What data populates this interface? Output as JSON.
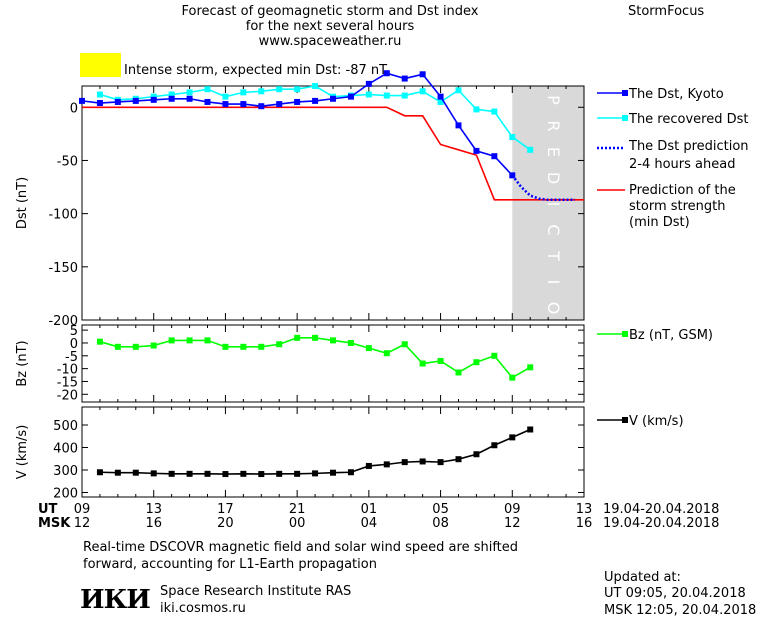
{
  "header": {
    "title_line1": "Forecast of geomagnetic storm and Dst index",
    "title_line2": "for the next several hours",
    "title_line3": "www.spaceweather.ru",
    "brand": "StormFocus"
  },
  "storm": {
    "label": "Intense storm, expected min Dst: -87 nT",
    "color": "#ffff00"
  },
  "prediction_label": "PREDICTION",
  "legend": {
    "dst_kyoto": "The Dst, Kyoto",
    "dst_recovered": "The recovered Dst",
    "dst_prediction_line1": "The Dst prediction",
    "dst_prediction_line2": "2-4 hours ahead",
    "storm_strength_line1": "Prediction of the",
    "storm_strength_line2": "storm strength",
    "storm_strength_line3": "(min Dst)",
    "bz": "Bz (nT, GSM)",
    "v": "V (km/s)"
  },
  "time_axis": {
    "ut_label": "UT",
    "msk_label": "MSK",
    "ut_ticks": [
      "09",
      "13",
      "17",
      "21",
      "01",
      "05",
      "09",
      "13"
    ],
    "msk_ticks": [
      "12",
      "16",
      "20",
      "00",
      "04",
      "08",
      "12",
      "16"
    ],
    "date_range": "19.04-20.04.2018",
    "x_range": [
      0,
      28
    ],
    "prediction_x_range": [
      24,
      28
    ]
  },
  "chart_data": [
    {
      "type": "line",
      "ylabel": "Dst (nT)",
      "ylim": [
        -200,
        20
      ],
      "yticks": [
        "0",
        "-50",
        "-100",
        "-150",
        "-200"
      ],
      "ytick_values": [
        0,
        -50,
        -100,
        -150,
        -200
      ],
      "series": [
        {
          "name": "The Dst, Kyoto",
          "color": "#0000ff",
          "x": [
            0,
            1,
            2,
            3,
            4,
            5,
            6,
            7,
            8,
            9,
            10,
            11,
            12,
            13,
            14,
            15,
            16,
            17,
            18,
            19,
            20,
            21,
            22,
            23,
            24
          ],
          "values": [
            6,
            4,
            5,
            6,
            7,
            8,
            8,
            5,
            3,
            3,
            1,
            3,
            5,
            6,
            8,
            10,
            22,
            32,
            27,
            31,
            10,
            -17,
            -41,
            -46,
            -64
          ]
        },
        {
          "name": "The recovered Dst",
          "color": "#00ffff",
          "x": [
            1,
            2,
            3,
            4,
            5,
            6,
            7,
            8,
            9,
            10,
            11,
            12,
            13,
            14,
            15,
            16,
            17,
            18,
            19,
            20,
            21,
            22,
            23,
            24,
            25
          ],
          "values": [
            12,
            7,
            8,
            10,
            12,
            14,
            17,
            10,
            14,
            15,
            17,
            17,
            20,
            10,
            11,
            12,
            11,
            11,
            15,
            5,
            16,
            -2,
            -4,
            -28,
            -40
          ]
        },
        {
          "name": "The Dst prediction",
          "color": "#0000ff",
          "x": [
            24,
            24.5,
            25,
            25.5,
            26,
            26.5,
            27,
            27.5
          ],
          "values": [
            -64,
            -75,
            -83,
            -86,
            -87,
            -87,
            -87,
            -87
          ]
        },
        {
          "name": "Prediction of the storm strength",
          "color": "#ff0000",
          "x": [
            0,
            17,
            18,
            19,
            20,
            21,
            22,
            23,
            24,
            25,
            26,
            27,
            28
          ],
          "values": [
            0,
            0,
            -8,
            -8,
            -35,
            -40,
            -45,
            -87,
            -87,
            -87,
            -87,
            -87,
            -87
          ]
        }
      ]
    },
    {
      "type": "line",
      "ylabel": "Bz (nT)",
      "ylim": [
        -23,
        7
      ],
      "yticks": [
        "5",
        "0",
        "-5",
        "-10",
        "-15",
        "-20"
      ],
      "ytick_values": [
        5,
        0,
        -5,
        -10,
        -15,
        -20
      ],
      "series": [
        {
          "name": "Bz (nT, GSM)",
          "color": "#00ff00",
          "x": [
            1,
            2,
            3,
            4,
            5,
            6,
            7,
            8,
            9,
            10,
            11,
            12,
            13,
            14,
            15,
            16,
            17,
            18,
            19,
            20,
            21,
            22,
            23,
            24,
            25
          ],
          "values": [
            0.5,
            -1.5,
            -1.5,
            -1,
            1,
            1,
            1,
            -1.5,
            -1.5,
            -1.5,
            -0.5,
            2,
            2,
            1,
            0,
            -2,
            -4,
            -0.5,
            -8,
            -7,
            -11.5,
            -7.5,
            -5,
            -13.5,
            -9.5
          ]
        }
      ]
    },
    {
      "type": "line",
      "ylabel": "V (km/s)",
      "ylim": [
        180,
        580
      ],
      "yticks": [
        "500",
        "400",
        "300",
        "200"
      ],
      "ytick_values": [
        500,
        400,
        300,
        200
      ],
      "series": [
        {
          "name": "V (km/s)",
          "color": "#000000",
          "x": [
            1,
            2,
            3,
            4,
            5,
            6,
            7,
            8,
            9,
            10,
            11,
            12,
            13,
            14,
            15,
            16,
            17,
            18,
            19,
            20,
            21,
            22,
            23,
            24,
            25
          ],
          "values": [
            290,
            288,
            288,
            285,
            283,
            283,
            283,
            282,
            283,
            282,
            283,
            283,
            285,
            288,
            290,
            318,
            325,
            335,
            338,
            335,
            348,
            370,
            410,
            445,
            480
          ]
        }
      ]
    }
  ],
  "footer": {
    "line1": "Real-time DSCOVR magnetic field and solar wind speed are shifted",
    "line2": "forward, accounting for L1-Earth propagation"
  },
  "institute": {
    "logo": "ИКИ",
    "name": "Space Research Institute RAS",
    "url": "iki.cosmos.ru"
  },
  "updated": {
    "label": "Updated at:",
    "ut": "UT   09:05, 20.04.2018",
    "msk": "MSK 12:05, 20.04.2018"
  }
}
